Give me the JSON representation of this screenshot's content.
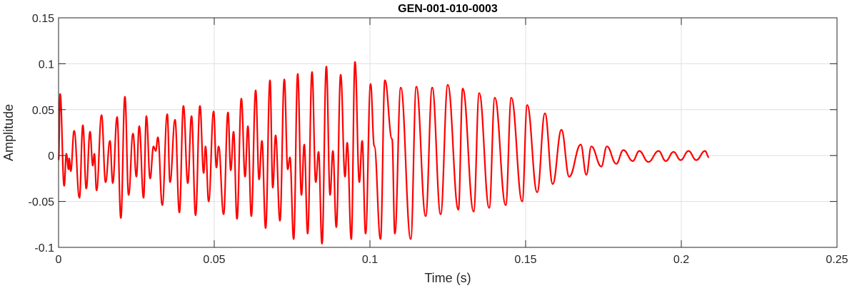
{
  "chart_data": {
    "type": "line",
    "title": "GEN-001-010-0003",
    "xlabel": "Time (s)",
    "ylabel": "Amplitude",
    "xlim": [
      0,
      0.25
    ],
    "ylim": [
      -0.1,
      0.15
    ],
    "xticks": [
      0,
      0.05,
      0.1,
      0.15,
      0.2,
      0.25
    ],
    "xtick_labels": [
      "0",
      "0.05",
      "0.1",
      "0.15",
      "0.2",
      "0.25"
    ],
    "yticks": [
      -0.1,
      -0.05,
      0,
      0.05,
      0.1,
      0.15
    ],
    "ytick_labels": [
      "-0.1",
      "-0.05",
      "0",
      "0.05",
      "0.1",
      "0.15"
    ],
    "grid": true,
    "line_color": "#ff0000",
    "series": [
      {
        "x": [
          0,
          0.0005,
          0.0018,
          0.0025,
          0.0032,
          0.0034,
          0.0039,
          0.005,
          0.0067,
          0.0078,
          0.0089,
          0.0101,
          0.011,
          0.0115,
          0.0122,
          0.0138,
          0.0151,
          0.0165,
          0.0174,
          0.0188,
          0.02,
          0.0213,
          0.0225,
          0.0239,
          0.025,
          0.0259,
          0.0273,
          0.0282,
          0.0294,
          0.0305,
          0.0312,
          0.0319,
          0.0333,
          0.0349,
          0.0358,
          0.0374,
          0.0388,
          0.0401,
          0.0415,
          0.0427,
          0.044,
          0.0454,
          0.0466,
          0.0472,
          0.0482,
          0.0498,
          0.0507,
          0.0514,
          0.053,
          0.0544,
          0.0553,
          0.0562,
          0.0573,
          0.0587,
          0.0599,
          0.0608,
          0.0619,
          0.0633,
          0.0644,
          0.0653,
          0.0665,
          0.0679,
          0.0688,
          0.0697,
          0.0711,
          0.0725,
          0.0736,
          0.0743,
          0.0755,
          0.0768,
          0.078,
          0.0789,
          0.08,
          0.0814,
          0.0826,
          0.0835,
          0.0846,
          0.086,
          0.0872,
          0.0881,
          0.0892,
          0.0906,
          0.092,
          0.0927,
          0.094,
          0.0952,
          0.0966,
          0.0975,
          0.0986,
          0.1002,
          0.1014,
          0.1034,
          0.1048,
          0.1071,
          0.108,
          0.1099,
          0.1131,
          0.1149,
          0.1179,
          0.12,
          0.1227,
          0.125,
          0.1284,
          0.1298,
          0.1333,
          0.1351,
          0.1383,
          0.1401,
          0.1436,
          0.1454,
          0.1489,
          0.1505,
          0.1537,
          0.1562,
          0.1587,
          0.1615,
          0.164,
          0.1677,
          0.1695,
          0.1711,
          0.1743,
          0.1761,
          0.1791,
          0.1814,
          0.1844,
          0.1865,
          0.1894,
          0.1927,
          0.195,
          0.1975,
          0.1998,
          0.2023,
          0.2048,
          0.2076,
          0.2089
        ],
        "y": [
          -0.005,
          0.067,
          -0.033,
          0.002,
          -0.015,
          -0.003,
          -0.017,
          0.027,
          -0.046,
          0.033,
          -0.036,
          0.026,
          -0.011,
          0.002,
          -0.038,
          0.044,
          -0.029,
          0.016,
          -0.03,
          0.042,
          -0.068,
          0.064,
          -0.043,
          0.024,
          -0.023,
          0.032,
          -0.046,
          0.043,
          -0.025,
          0.01,
          0.005,
          0.02,
          -0.054,
          0.045,
          -0.029,
          0.039,
          -0.062,
          0.054,
          -0.03,
          0.043,
          -0.065,
          0.054,
          -0.019,
          0.01,
          -0.05,
          0.048,
          -0.013,
          0.01,
          -0.064,
          0.047,
          -0.016,
          0.026,
          -0.069,
          0.062,
          -0.023,
          0.032,
          -0.066,
          0.071,
          -0.026,
          0.016,
          -0.079,
          0.082,
          -0.035,
          0.022,
          -0.071,
          0.083,
          -0.015,
          -0.002,
          -0.091,
          0.089,
          -0.043,
          0.012,
          -0.085,
          0.091,
          -0.029,
          0.004,
          -0.096,
          0.097,
          -0.043,
          0.005,
          -0.078,
          0.088,
          -0.023,
          0.014,
          -0.091,
          0.102,
          -0.029,
          0.016,
          -0.085,
          0.078,
          0.01,
          -0.091,
          0.082,
          0.018,
          -0.085,
          0.074,
          -0.091,
          0.075,
          -0.066,
          0.074,
          -0.064,
          0.077,
          -0.059,
          0.073,
          -0.061,
          0.068,
          -0.057,
          0.063,
          -0.054,
          0.063,
          -0.05,
          0.055,
          -0.04,
          0.046,
          -0.031,
          0.028,
          -0.023,
          0.012,
          -0.021,
          0.01,
          -0.012,
          0.01,
          -0.009,
          0.006,
          -0.006,
          0.005,
          -0.007,
          0.005,
          -0.006,
          0.004,
          -0.005,
          0.005,
          -0.005,
          0.005,
          -0.002
        ]
      }
    ]
  }
}
